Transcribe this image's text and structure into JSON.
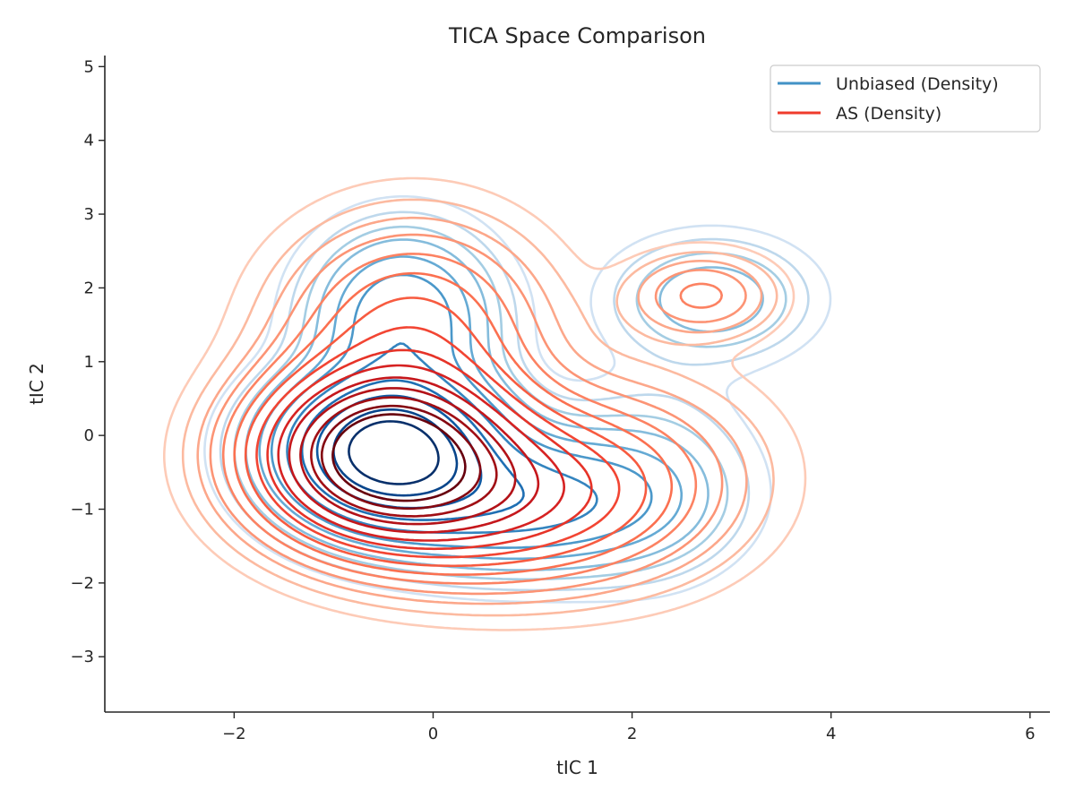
{
  "chart_data": {
    "type": "contour",
    "title": "TICA Space Comparison",
    "xlabel": "tIC 1",
    "ylabel": "tIC 2",
    "xlim": [
      -3.3,
      6.2
    ],
    "ylim": [
      -3.75,
      5.15
    ],
    "xticks": [
      -2,
      0,
      2,
      4,
      6
    ],
    "yticks": [
      -3,
      -2,
      -1,
      0,
      1,
      2,
      3,
      4,
      5
    ],
    "xtick_labels": [
      "−2",
      "0",
      "2",
      "4",
      "6"
    ],
    "ytick_labels": [
      "−3",
      "−2",
      "−1",
      "0",
      "1",
      "2",
      "3",
      "4",
      "5"
    ],
    "grid": false,
    "legend_position": "upper-right",
    "series": [
      {
        "name": "Unbiased (Density)",
        "color": "#4292c6",
        "colormap": "Blues",
        "components": [
          {
            "mx": -0.45,
            "my": -0.2,
            "sx": 0.65,
            "sy": 0.6,
            "w": 1.0
          },
          {
            "mx": 0.9,
            "my": -0.9,
            "sx": 0.9,
            "sy": 0.55,
            "w": 0.35
          },
          {
            "mx": -0.3,
            "my": 1.6,
            "sx": 0.55,
            "sy": 0.7,
            "w": 0.28
          },
          {
            "mx": 2.8,
            "my": 1.85,
            "sx": 0.6,
            "sy": 0.5,
            "w": 0.13
          },
          {
            "mx": 2.2,
            "my": -0.6,
            "sx": 0.6,
            "sy": 0.8,
            "w": 0.08
          }
        ],
        "levels": [
          0.018,
          0.035,
          0.06,
          0.09,
          0.14,
          0.2,
          0.3,
          0.42,
          0.56,
          0.72,
          0.86
        ]
      },
      {
        "name": "AS (Density)",
        "color": "#ef3b2c",
        "colormap": "Reds",
        "components": [
          {
            "mx": -0.5,
            "my": -0.25,
            "sx": 0.75,
            "sy": 0.68,
            "w": 1.0
          },
          {
            "mx": 0.6,
            "my": -0.8,
            "sx": 1.0,
            "sy": 0.7,
            "w": 0.4
          },
          {
            "mx": -0.2,
            "my": 1.4,
            "sx": 0.8,
            "sy": 0.9,
            "w": 0.22
          },
          {
            "mx": 2.7,
            "my": 1.9,
            "sx": 0.45,
            "sy": 0.35,
            "w": 0.12
          },
          {
            "mx": 2.0,
            "my": -0.5,
            "sx": 0.9,
            "sy": 0.9,
            "w": 0.08
          }
        ],
        "levels": [
          0.015,
          0.03,
          0.05,
          0.075,
          0.11,
          0.15,
          0.2,
          0.26,
          0.33,
          0.41,
          0.5,
          0.6,
          0.7,
          0.8,
          0.9
        ]
      }
    ]
  }
}
